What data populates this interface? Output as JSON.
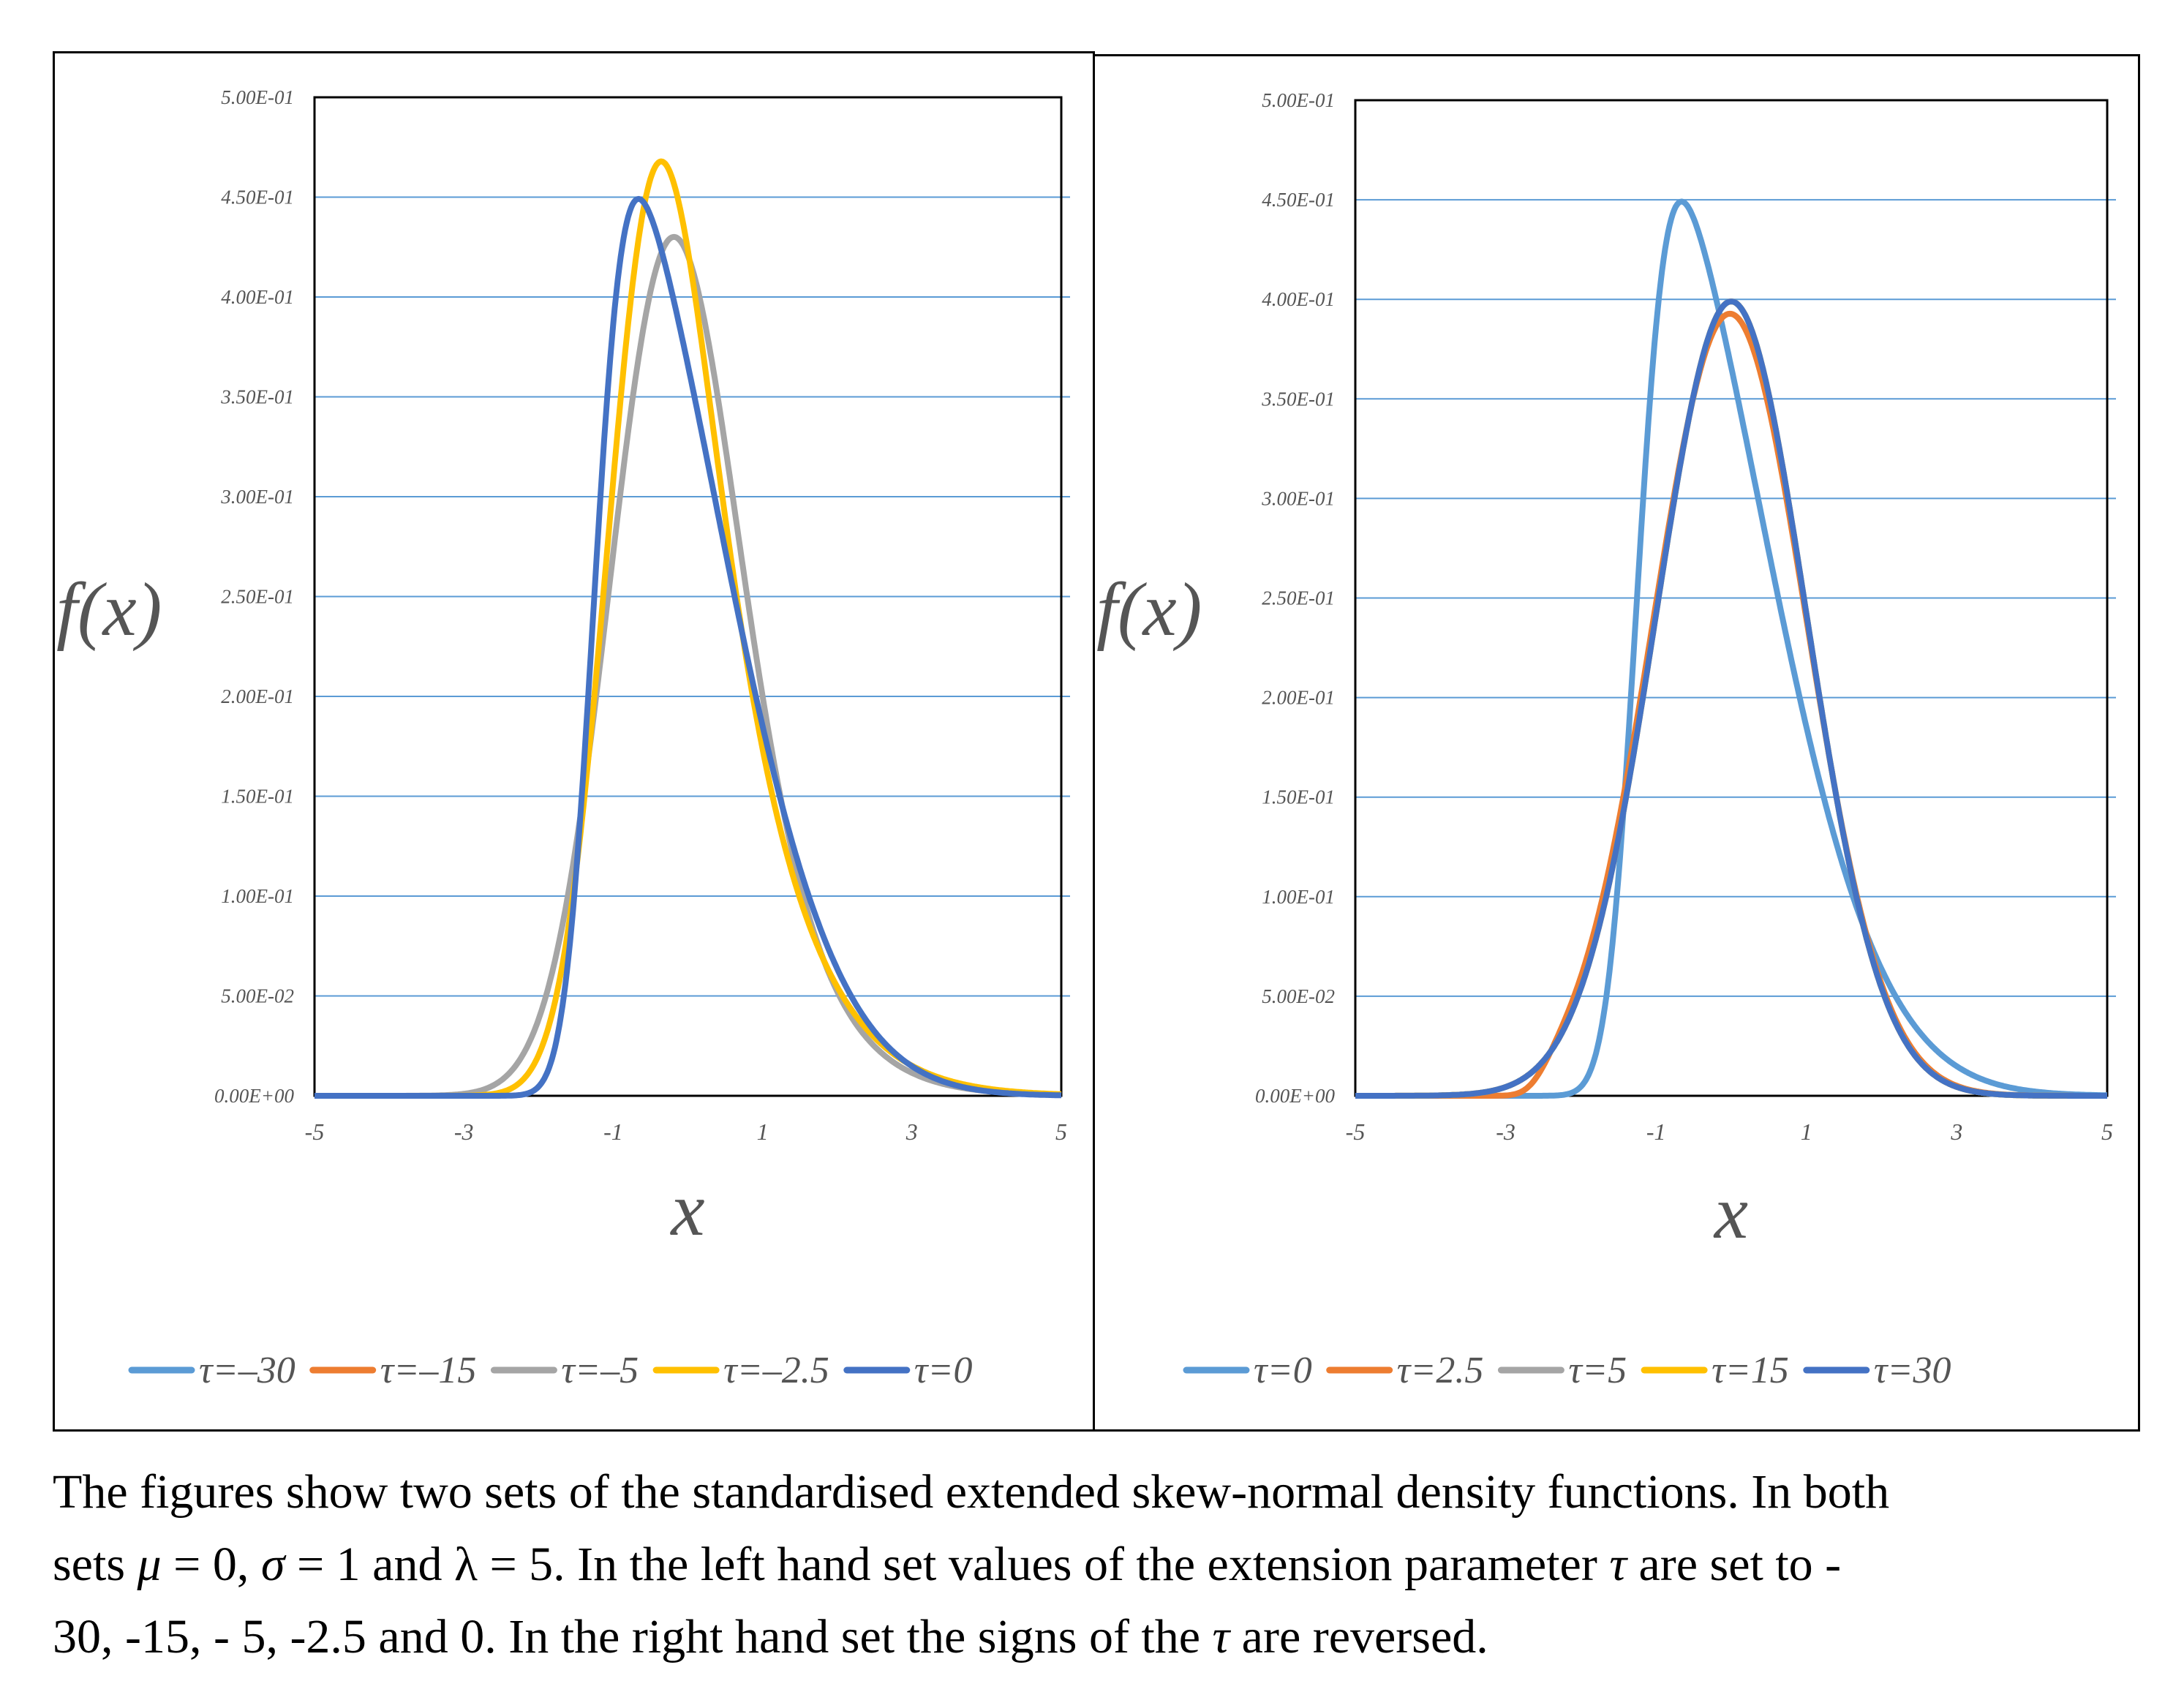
{
  "chart_data": [
    {
      "type": "line",
      "title": "",
      "xlabel": "x",
      "ylabel": "f(x)",
      "xlim": [
        -5,
        5
      ],
      "ylim": [
        0,
        0.5
      ],
      "x_ticks": [
        "-5",
        "-3",
        "-1",
        "1",
        "3",
        "5"
      ],
      "y_ticks": [
        "0.00E+00",
        "5.00E-02",
        "1.00E-01",
        "1.50E-01",
        "2.00E-01",
        "2.50E-01",
        "3.00E-01",
        "3.50E-01",
        "4.00E-01",
        "4.50E-01",
        "5.00E-01"
      ],
      "grid": "horizontal",
      "legend_position": "bottom",
      "lambda": 5,
      "series": [
        {
          "name": "τ=–30",
          "tau": -30,
          "color": "#5B9BD5"
        },
        {
          "name": "τ=–15",
          "tau": -15,
          "color": "#ED7D31"
        },
        {
          "name": "τ=–5",
          "tau": -5,
          "color": "#A5A5A5"
        },
        {
          "name": "τ=–2.5",
          "tau": -2.5,
          "color": "#FFC000"
        },
        {
          "name": "τ=0",
          "tau": 0,
          "color": "#4472C4"
        }
      ]
    },
    {
      "type": "line",
      "title": "",
      "xlabel": "x",
      "ylabel": "f(x)",
      "xlim": [
        -5,
        5
      ],
      "ylim": [
        0,
        0.5
      ],
      "x_ticks": [
        "-5",
        "-3",
        "-1",
        "1",
        "3",
        "5"
      ],
      "y_ticks": [
        "0.00E+00",
        "5.00E-02",
        "1.00E-01",
        "1.50E-01",
        "2.00E-01",
        "2.50E-01",
        "3.00E-01",
        "3.50E-01",
        "4.00E-01",
        "4.50E-01",
        "5.00E-01"
      ],
      "grid": "horizontal",
      "legend_position": "bottom",
      "lambda": 5,
      "series": [
        {
          "name": "τ=0",
          "tau": 0,
          "color": "#5B9BD5"
        },
        {
          "name": "τ=2.5",
          "tau": 2.5,
          "color": "#ED7D31"
        },
        {
          "name": "τ=5",
          "tau": 5,
          "color": "#A5A5A5"
        },
        {
          "name": "τ=15",
          "tau": 15,
          "color": "#FFC000"
        },
        {
          "name": "τ=30",
          "tau": 30,
          "color": "#4472C4"
        }
      ]
    }
  ],
  "caption": {
    "line1": "The figures show two sets of the standardised extended skew-normal density functions. In both",
    "line2_a": "sets ",
    "line2_mu": "μ",
    "line2_b": " = 0, ",
    "line2_sigma": "σ",
    "line2_c": " = 1 and λ = 5. In the left hand set values of the extension parameter ",
    "line2_tau": "τ",
    "line2_d": " are set to -",
    "line3_a": "30, -15, - 5, -2.5 and 0. In the right hand set the signs of the ",
    "line3_tau": "τ",
    "line3_b": " are reversed."
  }
}
